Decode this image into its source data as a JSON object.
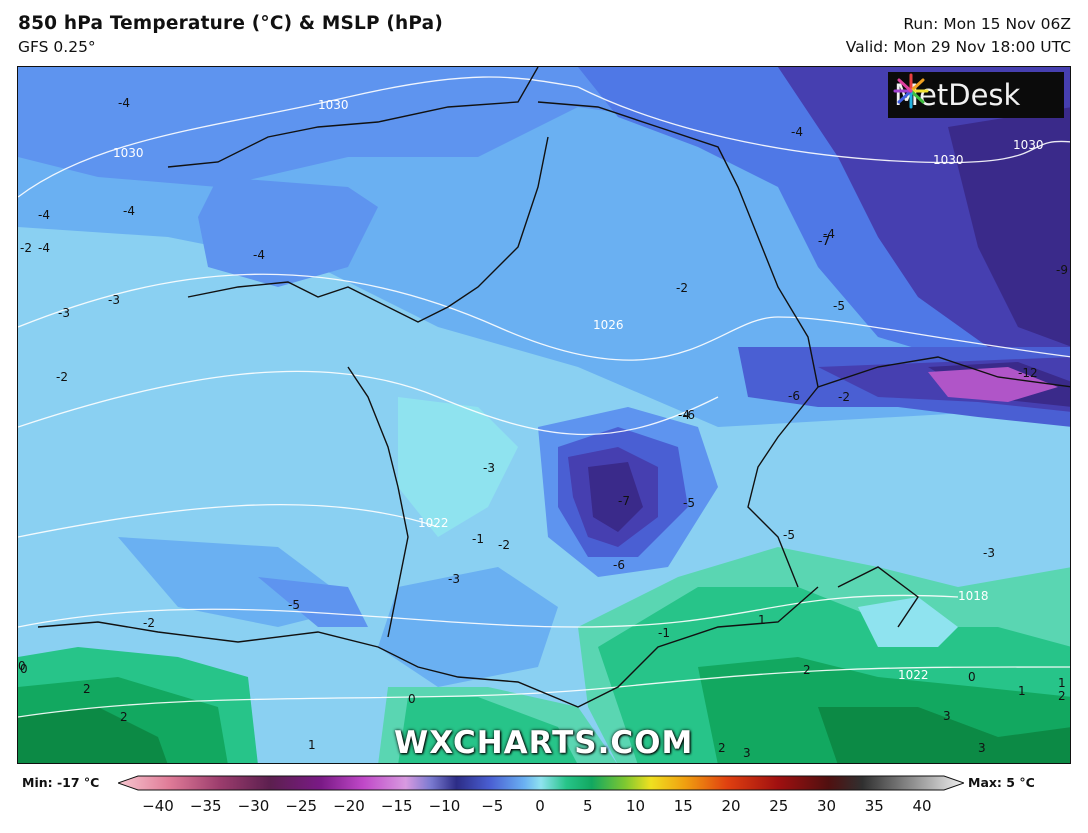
{
  "header": {
    "title": "850 hPa Temperature (°C) & MSLP (hPa)",
    "subtitle": "GFS 0.25°",
    "run": "Run: Mon 15 Nov 06Z",
    "valid": "Valid: Mon 29 Nov 18:00 UTC"
  },
  "logo": {
    "text": "MetDesk"
  },
  "watermark": "WXCHARTS.COM",
  "colorbar": {
    "min_label": "Min: -17 °C",
    "max_label": "Max: 5 °C",
    "ticks": [
      "−40",
      "−35",
      "−30",
      "−25",
      "−20",
      "−15",
      "−10",
      "−5",
      "0",
      "5",
      "10",
      "15",
      "20",
      "25",
      "30",
      "35",
      "40"
    ]
  },
  "map": {
    "isobar_labels": [
      "1030",
      "1030",
      "1030",
      "1030",
      "1026",
      "1022",
      "1018",
      "1018",
      "1022"
    ],
    "temp_labels": [
      "-4",
      "-4",
      "-4",
      "-4",
      "-3",
      "-3",
      "-2",
      "-2",
      "-2",
      "-3",
      "-1",
      "-2",
      "-3",
      "-5",
      "-4",
      "-7",
      "-6",
      "-5",
      "-4",
      "-6",
      "-7",
      "-5",
      "-5",
      "-6",
      "-12",
      "-9",
      "-3",
      "-1",
      "0",
      "0",
      "1",
      "2",
      "2",
      "2",
      "1",
      "0",
      "1",
      "2",
      "3",
      "3",
      "3",
      "0",
      "1",
      "2",
      "-2",
      "-4",
      "-2",
      "-7",
      "-4"
    ],
    "palette": {
      "m1": "#8fe3ef",
      "m2": "#8ad0f2",
      "m3": "#6ab0f2",
      "m4": "#5e94ef",
      "m5": "#4f78e6",
      "m6": "#4a5fd3",
      "m7": "#463fb0",
      "m8": "#3a2a8a",
      "m12": "#b055c8",
      "p0": "#5ad6b2",
      "p1": "#27c489",
      "p2": "#12a860",
      "p3": "#0c8a45",
      "isobar": "#ffffff",
      "coast": "#111111"
    }
  }
}
